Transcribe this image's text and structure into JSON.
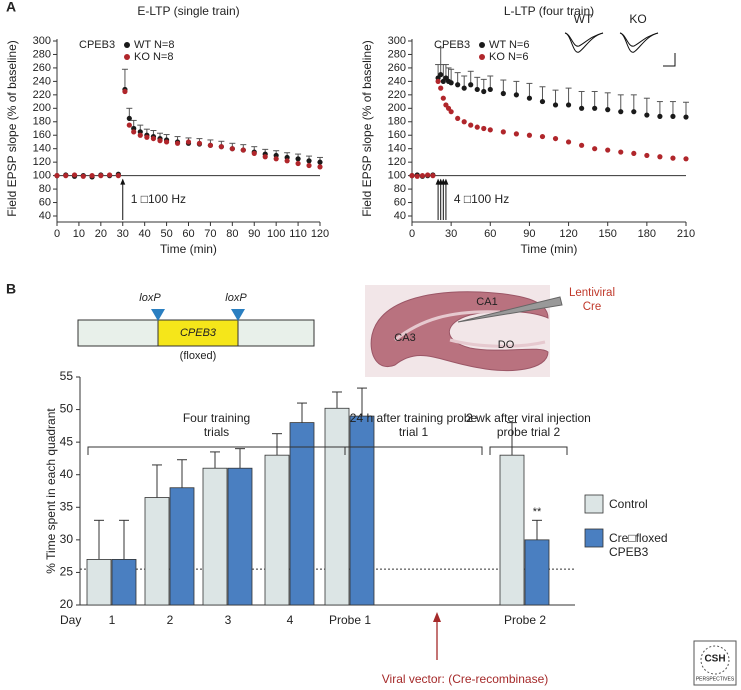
{
  "panel_labels": [
    "A",
    "B"
  ],
  "chart_data": [
    {
      "type": "scatter",
      "title": "E-LTP (single train)",
      "x_label": "Time (min)",
      "y_label": "Field EPSP slope (% of baseline)",
      "legend_title": "CPEB3",
      "x": [
        0,
        4,
        8,
        12,
        16,
        20,
        24,
        28,
        31,
        33,
        35,
        38,
        41,
        44,
        47,
        50,
        55,
        60,
        65,
        70,
        75,
        80,
        85,
        90,
        95,
        100,
        105,
        110,
        115,
        120
      ],
      "series": [
        {
          "name": "WT N=8",
          "color": "#1a1a1a",
          "values": [
            100,
            101,
            99,
            100,
            98,
            101,
            100,
            102,
            228,
            185,
            170,
            165,
            160,
            158,
            155,
            153,
            150,
            148,
            147,
            145,
            143,
            140,
            138,
            135,
            132,
            130,
            127,
            125,
            122,
            120
          ],
          "errors": [
            null,
            null,
            null,
            null,
            null,
            null,
            null,
            null,
            30,
            15,
            12,
            10,
            9,
            9,
            8,
            8,
            8,
            8,
            8,
            8,
            8,
            8,
            8,
            8,
            7,
            7,
            7,
            7,
            7,
            7
          ]
        },
        {
          "name": "KO N=8",
          "color": "#b0262b",
          "values": [
            100,
            100,
            101,
            99,
            100,
            100,
            101,
            100,
            225,
            175,
            165,
            160,
            157,
            155,
            152,
            150,
            148,
            150,
            148,
            145,
            143,
            140,
            138,
            133,
            128,
            125,
            122,
            118,
            115,
            113
          ]
        }
      ],
      "xlim": [
        0,
        120
      ],
      "xticks": [
        0,
        10,
        20,
        30,
        40,
        50,
        60,
        70,
        80,
        90,
        100,
        110,
        120
      ],
      "ylim": [
        40,
        300
      ],
      "yticks": [
        40,
        60,
        80,
        100,
        120,
        140,
        160,
        180,
        200,
        220,
        240,
        260,
        280,
        300
      ],
      "reference_line": 100,
      "annotations": [
        {
          "text": "1 □100 Hz",
          "x": [
            30
          ]
        }
      ]
    },
    {
      "type": "scatter",
      "title": "L-LTP (four train)",
      "x_label": "Time (min)",
      "y_label": "Field EPSP slope (% of baseline)",
      "legend_title": "CPEB3",
      "inset_labels": [
        "WT",
        "KO"
      ],
      "x": [
        0,
        4,
        8,
        12,
        16,
        20,
        22,
        24,
        26,
        28,
        30,
        35,
        40,
        45,
        50,
        55,
        60,
        70,
        80,
        90,
        100,
        110,
        120,
        130,
        140,
        150,
        160,
        170,
        180,
        190,
        200,
        210
      ],
      "series": [
        {
          "name": "WT N=6",
          "color": "#1a1a1a",
          "values": [
            100,
            101,
            99,
            100,
            101,
            245,
            250,
            240,
            245,
            240,
            238,
            235,
            230,
            235,
            228,
            225,
            228,
            222,
            220,
            215,
            210,
            205,
            205,
            200,
            200,
            198,
            195,
            195,
            190,
            188,
            188,
            187
          ],
          "errors": [
            null,
            null,
            null,
            null,
            null,
            20,
            40,
            25,
            20,
            20,
            20,
            18,
            18,
            20,
            18,
            18,
            20,
            20,
            20,
            22,
            22,
            22,
            25,
            25,
            25,
            25,
            25,
            25,
            25,
            22,
            22,
            22
          ]
        },
        {
          "name": "KO N=6",
          "color": "#b0262b",
          "values": [
            100,
            99,
            100,
            101,
            100,
            240,
            230,
            215,
            205,
            200,
            195,
            185,
            180,
            175,
            172,
            170,
            168,
            165,
            162,
            160,
            158,
            155,
            150,
            145,
            140,
            138,
            135,
            133,
            130,
            128,
            126,
            125
          ]
        }
      ],
      "xlim": [
        0,
        210
      ],
      "xticks": [
        0,
        30,
        60,
        90,
        120,
        150,
        180,
        210
      ],
      "ylim": [
        40,
        300
      ],
      "yticks": [
        40,
        60,
        80,
        100,
        120,
        140,
        160,
        180,
        200,
        220,
        240,
        260,
        280,
        300
      ],
      "reference_line": 100,
      "annotations": [
        {
          "text": "4 □100 Hz",
          "x": [
            20,
            22,
            24,
            26
          ]
        }
      ]
    },
    {
      "type": "bar",
      "y_label": "% Time spent in each quadrant",
      "x_label": "Day",
      "categories": [
        "1",
        "2",
        "3",
        "4",
        "Probe 1",
        null,
        "Probe 2"
      ],
      "series": [
        {
          "name": "Control",
          "color": "#dce5e5",
          "values": [
            27,
            36.5,
            41,
            43,
            50.2,
            null,
            43
          ],
          "errors": [
            6,
            5,
            2.5,
            3.3,
            2.5,
            null,
            5
          ]
        },
        {
          "name": "Cre□floxed CPEB3",
          "color": "#4a7fc1",
          "values": [
            27,
            38,
            41,
            48,
            49,
            null,
            30
          ],
          "errors": [
            6,
            4.3,
            3,
            3,
            4.3,
            null,
            3
          ]
        }
      ],
      "ylim": [
        20,
        55
      ],
      "yticks": [
        20,
        25,
        30,
        35,
        40,
        45,
        50,
        55
      ],
      "reference_line": 25.5,
      "group_labels": [
        "Four training trials",
        "24 h after training probe trial 1",
        "2 wk after viral injection probe trial 2"
      ],
      "annotations": [
        {
          "text": "**"
        }
      ],
      "arrow_label": "Viral vector: (Cre-recombinase)"
    }
  ],
  "diagram": {
    "loxp": [
      "loxP",
      "loxP"
    ],
    "gene": "CPEB3",
    "gene_note": "(floxed)",
    "regions": [
      "CA1",
      "CA3",
      "DO"
    ],
    "injection": "Lentiviral Cre"
  },
  "logo": [
    "CSH",
    "PERSPECTIVES"
  ]
}
